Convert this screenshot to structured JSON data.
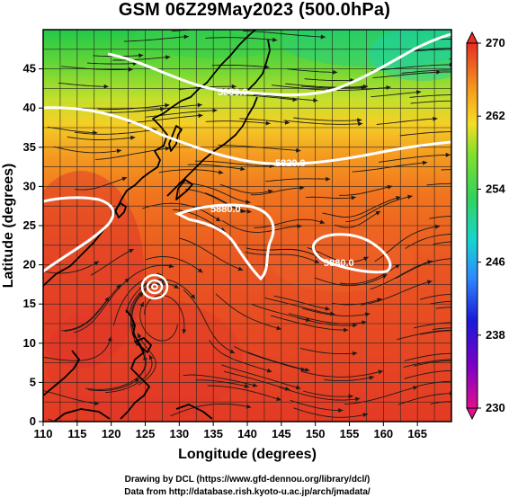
{
  "title": "GSM 06Z29May2023 (500.0hPa)",
  "xaxis": {
    "label": "Longitude (degrees)",
    "ticks": [
      "110",
      "115",
      "120",
      "125",
      "130",
      "135",
      "140",
      "145",
      "150",
      "155",
      "160",
      "165"
    ],
    "range": [
      110,
      170
    ]
  },
  "yaxis": {
    "label": "Latitude (degrees)",
    "ticks": [
      "0",
      "5",
      "10",
      "15",
      "20",
      "25",
      "30",
      "35",
      "40",
      "45"
    ],
    "range": [
      0,
      50
    ]
  },
  "colorbar": {
    "ticks": [
      "270",
      "262",
      "254",
      "246",
      "238",
      "230"
    ],
    "range": [
      230,
      270
    ],
    "colors": [
      "#e0108f",
      "#2a00d0",
      "#2d8cff",
      "#17d4cf",
      "#33d35a",
      "#86e02b",
      "#f4dd27",
      "#f7a51e",
      "#f2561f",
      "#e63022"
    ]
  },
  "contours": [
    {
      "label": "5880.0"
    },
    {
      "label": "5820.0"
    },
    {
      "label": "5880.0"
    },
    {
      "label": "5880.0"
    }
  ],
  "credits": [
    "Drawing by DCL (https://www.gfd-dennou.org/library/dcl/)",
    "Data from http://database.rish.kyoto-u.ac.jp/arch/jmadata/"
  ]
}
